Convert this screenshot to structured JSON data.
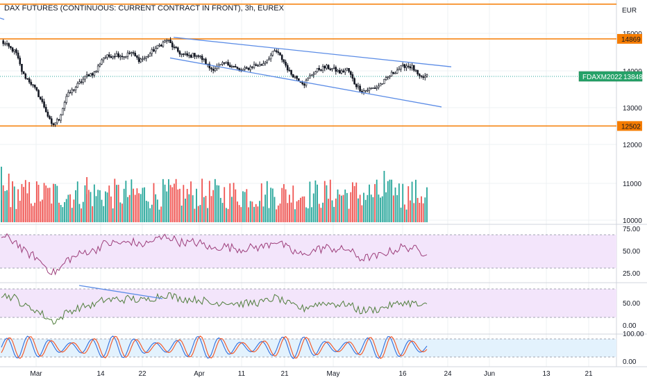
{
  "header": {
    "title": "DAX FUTURES (CONTINUOUS: CURRENT CONTRACT IN FRONT), 3h, EUREX"
  },
  "price_axis": {
    "currency": "EUR",
    "ticks": [
      "15000",
      "14000",
      "13000",
      "12000",
      "11000",
      "10000"
    ],
    "tick_values": [
      15000,
      14000,
      13000,
      12000,
      11000,
      10000
    ]
  },
  "levels": {
    "resistance": "14869",
    "support": "12502",
    "resistance_value": 14869,
    "support_value": 12502,
    "top_line_value": 15700
  },
  "symbol_tag": {
    "symbol": "FDAXM2022",
    "price": "13848",
    "price_value": 13848
  },
  "time_axis": {
    "labels": [
      "Mar",
      "14",
      "22",
      "Apr",
      "11",
      "21",
      "May",
      "16",
      "24",
      "Jun",
      "13",
      "21"
    ]
  },
  "rsi_panel": {
    "ticks": [
      "75.00",
      "50.00",
      "25.00"
    ],
    "tick_values": [
      75,
      50,
      25
    ],
    "band": [
      30,
      70
    ]
  },
  "osc_panel": {
    "ticks": [
      "50.00",
      "0.00"
    ],
    "tick_values": [
      50,
      0
    ]
  },
  "stoch_panel": {
    "ticks": [
      "100.00",
      "0.00"
    ],
    "tick_values": [
      100,
      0
    ]
  },
  "colors": {
    "up": "#26a69a",
    "down": "#ef5350",
    "candle": "#131722",
    "level": "#f57c00",
    "channel": "#5b8ce6",
    "tag": "#26a269",
    "rsi": "#9c3d7a",
    "osc": "#4f7d3b",
    "stoch_k": "#2f6cdb",
    "stoch_d": "#f4511e",
    "rsi_band": "#f3e5fb",
    "stoch_band": "#e3f2fd"
  },
  "chart_data": {
    "type": "candlestick",
    "symbol": "FDAXM2022",
    "interval": "3h",
    "exchange": "EUREX",
    "x_labels": [
      "Mar",
      "14",
      "22",
      "Apr",
      "11",
      "21",
      "May",
      "16",
      "24",
      "Jun",
      "13",
      "21"
    ],
    "close_path": [
      {
        "date": "Feb 24",
        "close": 14800
      },
      {
        "date": "Feb 25",
        "close": 14650
      },
      {
        "date": "Feb 28",
        "close": 14500
      },
      {
        "date": "Mar 1",
        "close": 13900
      },
      {
        "date": "Mar 2",
        "close": 13700
      },
      {
        "date": "Mar 3",
        "close": 13400
      },
      {
        "date": "Mar 4",
        "close": 13000
      },
      {
        "date": "Mar 7",
        "close": 12500
      },
      {
        "date": "Mar 8",
        "close": 12700
      },
      {
        "date": "Mar 9",
        "close": 13300
      },
      {
        "date": "Mar 10",
        "close": 13500
      },
      {
        "date": "Mar 11",
        "close": 13700
      },
      {
        "date": "Mar 14",
        "close": 13900
      },
      {
        "date": "Mar 15",
        "close": 13950
      },
      {
        "date": "Mar 16",
        "close": 14350
      },
      {
        "date": "Mar 17",
        "close": 14400
      },
      {
        "date": "Mar 18",
        "close": 14450
      },
      {
        "date": "Mar 21",
        "close": 14400
      },
      {
        "date": "Mar 22",
        "close": 14500
      },
      {
        "date": "Mar 23",
        "close": 14300
      },
      {
        "date": "Mar 24",
        "close": 14350
      },
      {
        "date": "Mar 25",
        "close": 14550
      },
      {
        "date": "Mar 28",
        "close": 14700
      },
      {
        "date": "Mar 29",
        "close": 14850
      },
      {
        "date": "Mar 30",
        "close": 14600
      },
      {
        "date": "Mar 31",
        "close": 14450
      },
      {
        "date": "Apr 1",
        "close": 14400
      },
      {
        "date": "Apr 4",
        "close": 14450
      },
      {
        "date": "Apr 5",
        "close": 14300
      },
      {
        "date": "Apr 6",
        "close": 14050
      },
      {
        "date": "Apr 7",
        "close": 14100
      },
      {
        "date": "Apr 8",
        "close": 14200
      },
      {
        "date": "Apr 11",
        "close": 14150
      },
      {
        "date": "Apr 12",
        "close": 14000
      },
      {
        "date": "Apr 13",
        "close": 14050
      },
      {
        "date": "Apr 14",
        "close": 14150
      },
      {
        "date": "Apr 19",
        "close": 14150
      },
      {
        "date": "Apr 20",
        "close": 14350
      },
      {
        "date": "Apr 21",
        "close": 14550
      },
      {
        "date": "Apr 22",
        "close": 14300
      },
      {
        "date": "Apr 25",
        "close": 13950
      },
      {
        "date": "Apr 26",
        "close": 13800
      },
      {
        "date": "Apr 27",
        "close": 13650
      },
      {
        "date": "Apr 28",
        "close": 13900
      },
      {
        "date": "Apr 29",
        "close": 14050
      },
      {
        "date": "May 2",
        "close": 14100
      },
      {
        "date": "May 3",
        "close": 14050
      },
      {
        "date": "May 4",
        "close": 13950
      },
      {
        "date": "May 5",
        "close": 14050
      },
      {
        "date": "May 6",
        "close": 13650
      },
      {
        "date": "May 9",
        "close": 13450
      },
      {
        "date": "May 10",
        "close": 13500
      },
      {
        "date": "May 11",
        "close": 13550
      },
      {
        "date": "May 12",
        "close": 13700
      },
      {
        "date": "May 13",
        "close": 13900
      },
      {
        "date": "May 16",
        "close": 14050
      },
      {
        "date": "May 17",
        "close": 14150
      },
      {
        "date": "May 18",
        "close": 14100
      },
      {
        "date": "May 19",
        "close": 13800
      },
      {
        "date": "May 20",
        "close": 13848
      }
    ],
    "levels": [
      {
        "name": "resistance",
        "value": 14869
      },
      {
        "name": "support",
        "value": 12502
      }
    ],
    "channel": {
      "upper": [
        {
          "date": "Mar 29",
          "value": 14900
        },
        {
          "date": "May 20",
          "value": 14150
        }
      ],
      "lower": [
        {
          "date": "Mar 22",
          "value": 14300
        },
        {
          "date": "May 20",
          "value": 13050
        }
      ]
    },
    "panels": [
      {
        "name": "volume",
        "type": "bar"
      },
      {
        "name": "rsi",
        "type": "line",
        "ylim": [
          0,
          100
        ],
        "band": [
          30,
          70
        ],
        "range_seen": [
          25,
          73
        ]
      },
      {
        "name": "oscillator",
        "type": "line",
        "range_seen": [
          0,
          75
        ]
      },
      {
        "name": "stochastic",
        "type": "line",
        "ylim": [
          0,
          100
        ],
        "series": 2,
        "band": [
          20,
          80
        ]
      }
    ]
  }
}
